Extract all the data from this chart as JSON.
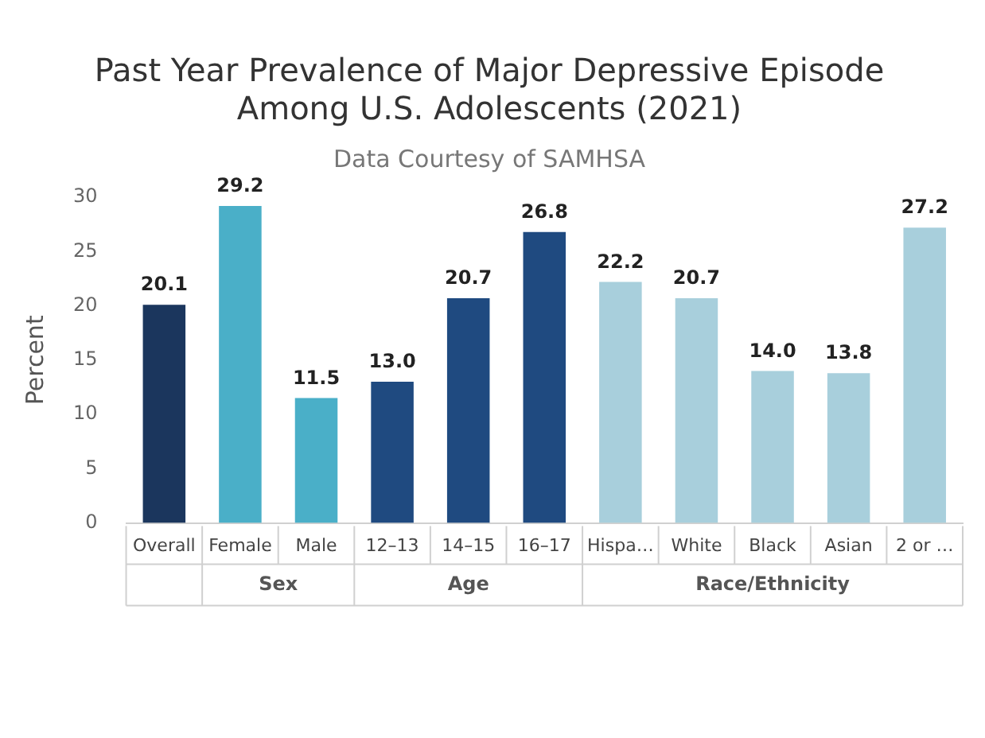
{
  "chart_data": {
    "type": "bar",
    "title": "Past Year Prevalence of Major Depressive Episode Among U.S. Adolescents (2021)",
    "subtitle": "Data Courtesy of SAMHSA",
    "ylabel": "Percent",
    "categories": [
      "Overall",
      "Female",
      "Male",
      "12–13",
      "14–15",
      "16–17",
      "Hispa…",
      "White",
      "Black",
      "Asian",
      "2 or …"
    ],
    "values": [
      20.1,
      29.2,
      11.5,
      13.0,
      20.7,
      26.8,
      22.2,
      20.7,
      14.0,
      13.8,
      27.2
    ],
    "value_labels": [
      "20.1",
      "29.2",
      "11.5",
      "13.0",
      "20.7",
      "26.8",
      "22.2",
      "20.7",
      "14.0",
      "13.8",
      "27.2"
    ],
    "colors": [
      "#1b365d",
      "#4aafc8",
      "#4aafc8",
      "#1f4a80",
      "#1f4a80",
      "#1f4a80",
      "#a8cfdc",
      "#a8cfdc",
      "#a8cfdc",
      "#a8cfdc",
      "#a8cfdc"
    ],
    "annotations": [
      "Sex",
      "Age",
      "Race/Ethnicity"
    ],
    "ylim": [
      0,
      30
    ],
    "yticks": [
      0,
      5,
      10,
      15,
      20,
      25,
      30
    ],
    "grid": false,
    "legend": false
  }
}
